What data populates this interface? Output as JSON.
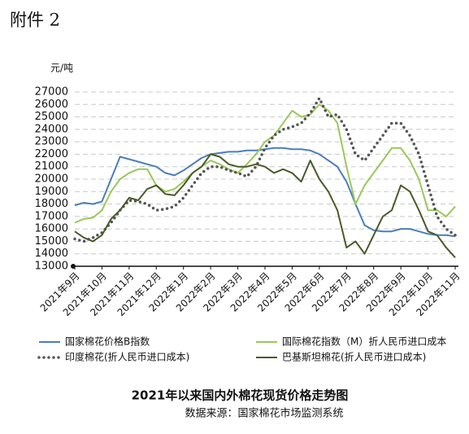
{
  "header": "附件 2",
  "chart_data": {
    "type": "line",
    "title": "2021年以来国内外棉花现货价格走势图",
    "subtitle": "数据来源：国家棉花市场监测系统",
    "y_label": "元/吨",
    "categories": [
      "2021年9月",
      null,
      null,
      "2021年10月",
      null,
      null,
      "2021年11月",
      null,
      null,
      "2021年12月",
      null,
      null,
      "2022年1月",
      null,
      null,
      "2022年2月",
      null,
      null,
      "2022年3月",
      null,
      null,
      "2022年4月",
      null,
      null,
      "2022年5月",
      null,
      null,
      "2022年6月",
      null,
      null,
      "2022年7月",
      null,
      null,
      "2022年8月",
      null,
      null,
      "2022年9月",
      null,
      null,
      "2022年10月",
      null,
      null,
      "2022年11月"
    ],
    "ylim": [
      13000,
      27000
    ],
    "yticks": [
      13000,
      14000,
      15000,
      16000,
      17000,
      18000,
      19000,
      20000,
      21000,
      22000,
      23000,
      24000,
      25000,
      26000,
      27000
    ],
    "grid": true,
    "series": [
      {
        "name": "国家棉花价格B指数",
        "color": "#4a7ebb",
        "style": "solid",
        "values": [
          17900,
          18100,
          18000,
          18200,
          20000,
          21800,
          21600,
          21400,
          21200,
          21000,
          20500,
          20300,
          20700,
          21200,
          21700,
          22000,
          22100,
          22200,
          22200,
          22300,
          22300,
          22400,
          22500,
          22500,
          22400,
          22400,
          22300,
          22000,
          21500,
          21000,
          19800,
          18000,
          16300,
          15900,
          15800,
          15800,
          16000,
          16000,
          15800,
          15600,
          15500,
          15500,
          15400
        ]
      },
      {
        "name": "国际棉花指数（M）折人民币进口成本",
        "color": "#9bc75a",
        "style": "solid",
        "values": [
          16500,
          16800,
          16900,
          17500,
          19000,
          20000,
          20500,
          20800,
          20800,
          19500,
          19000,
          19200,
          19800,
          20500,
          21000,
          21500,
          21200,
          20800,
          20500,
          21200,
          22000,
          23000,
          23500,
          24500,
          25500,
          25000,
          25200,
          26000,
          25500,
          24500,
          21000,
          18000,
          19500,
          20500,
          21500,
          22500,
          22500,
          21500,
          20000,
          17500,
          17500,
          17000,
          17800
        ]
      },
      {
        "name": "印度棉花(折人民币进口成本)",
        "color": "#555555",
        "style": "dotted",
        "values": [
          15200,
          15000,
          15300,
          15700,
          16500,
          17500,
          18300,
          18200,
          18000,
          17500,
          17600,
          17800,
          18500,
          19500,
          20500,
          21000,
          21000,
          20700,
          20500,
          20200,
          21000,
          22500,
          23500,
          24000,
          24200,
          24500,
          25300,
          26500,
          25000,
          25200,
          24000,
          22000,
          21500,
          22500,
          23500,
          24500,
          24500,
          23500,
          22000,
          19500,
          17000,
          16000,
          15500
        ]
      },
      {
        "name": "巴基斯坦棉花(折人民币进口成本)",
        "color": "#4b5a2a",
        "style": "solid",
        "values": [
          15800,
          15300,
          15000,
          15500,
          16800,
          17500,
          18500,
          18300,
          19200,
          19500,
          18800,
          18700,
          19500,
          20500,
          21000,
          22000,
          21800,
          21200,
          21000,
          21000,
          21200,
          21000,
          20500,
          20800,
          20500,
          19800,
          21500,
          20000,
          19000,
          17500,
          14500,
          15000,
          14000,
          15500,
          17000,
          17500,
          19500,
          19000,
          17500,
          15800,
          15500,
          14500,
          13700
        ]
      }
    ]
  }
}
